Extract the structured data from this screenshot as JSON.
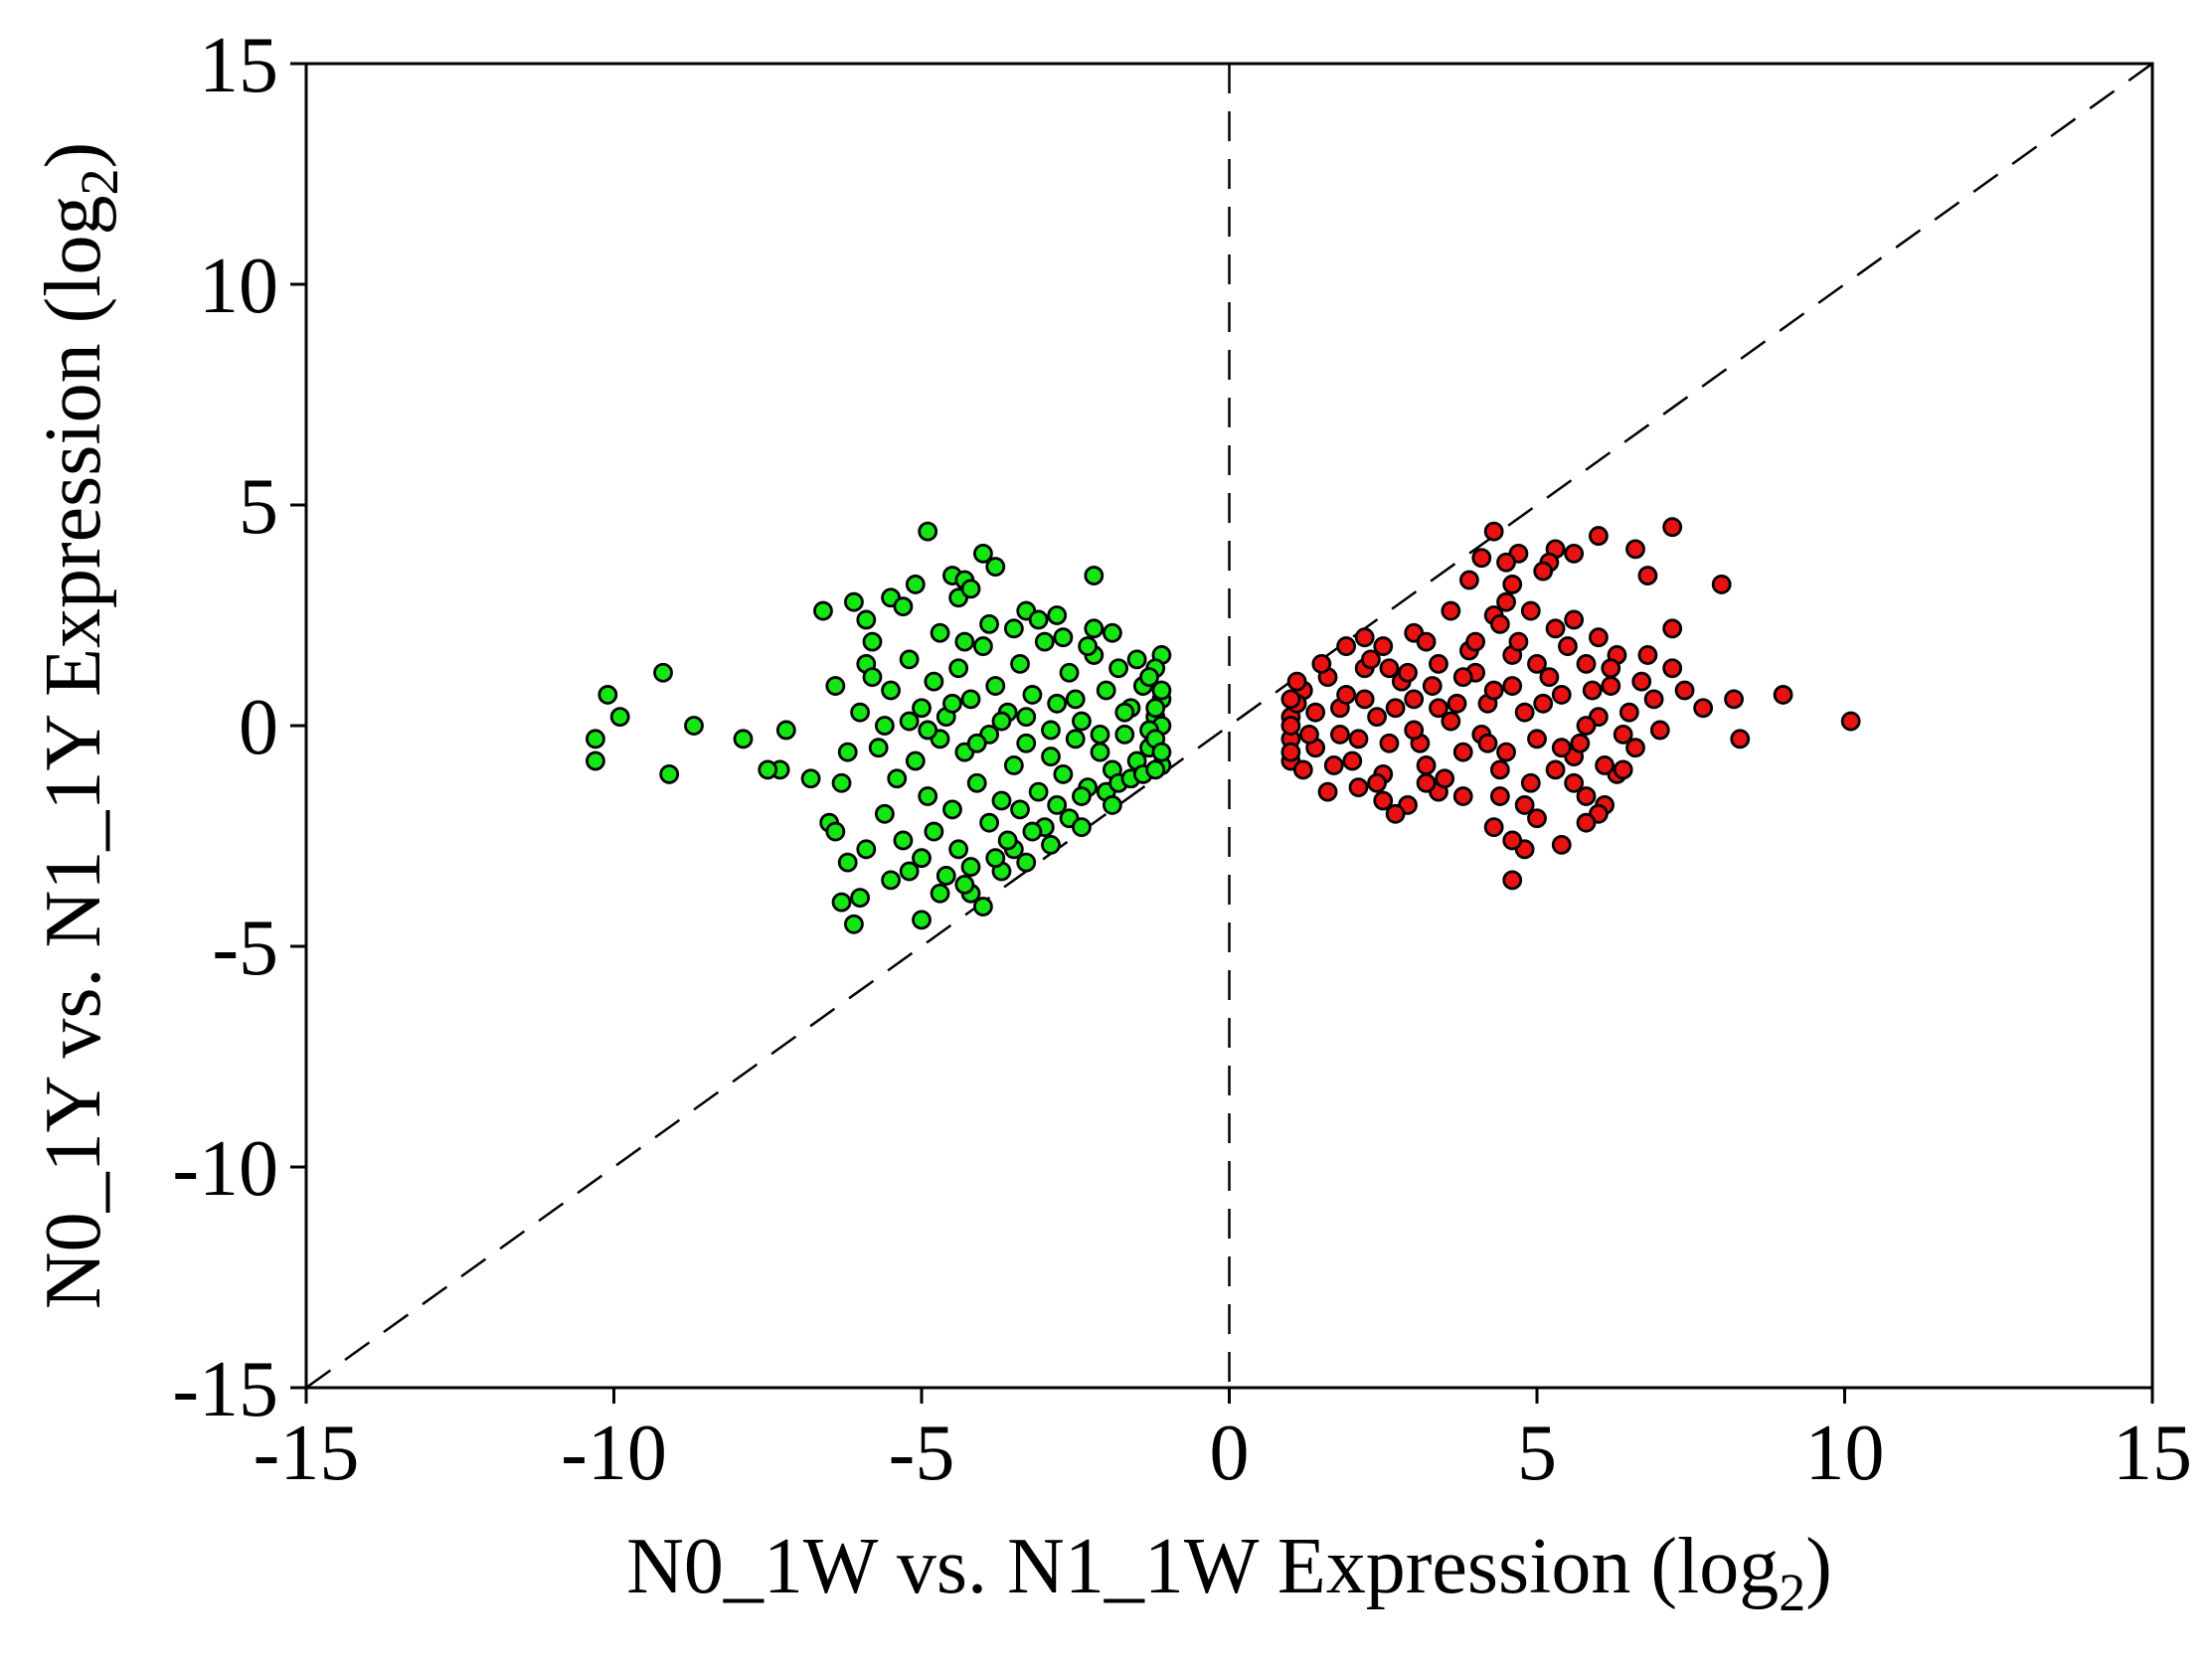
{
  "chart_data": {
    "type": "scatter",
    "title": "",
    "xlabel": {
      "main": "N0_1W vs. N1_1W Expression (log",
      "sub": "2",
      "end": ")"
    },
    "ylabel": {
      "main": "N0_1Y vs. N1_1Y Expression (log",
      "sub": "2",
      "end": ")"
    },
    "xlim": [
      -15,
      15
    ],
    "ylim": [
      -15,
      15
    ],
    "xticks": [
      -15,
      -10,
      -5,
      0,
      5,
      10,
      15
    ],
    "yticks": [
      -15,
      -10,
      -5,
      0,
      5,
      10,
      15
    ],
    "xtick_labels": [
      "-15",
      "-10",
      "-5",
      "0",
      "5",
      "10",
      "15"
    ],
    "ytick_labels": [
      "-15",
      "-10",
      "-5",
      "0",
      "5",
      "10",
      "15"
    ],
    "grid": false,
    "reference_lines": [
      {
        "kind": "vertical",
        "x": 0,
        "style": "dashed"
      },
      {
        "kind": "diagonal",
        "slope": 1,
        "intercept": 0,
        "style": "dashed"
      }
    ],
    "colors": {
      "down": "#14e614",
      "up": "#e81212",
      "edge": "#000000"
    },
    "series": [
      {
        "color": "#14e614",
        "points": [
          [
            -10.3,
            -0.8
          ],
          [
            -10.3,
            -0.3
          ],
          [
            -10.1,
            0.7
          ],
          [
            -9.9,
            0.2
          ],
          [
            -9.2,
            1.2
          ],
          [
            -9.1,
            -1.1
          ],
          [
            -8.7,
            0.0
          ],
          [
            -7.9,
            -0.3
          ],
          [
            -7.2,
            -0.1
          ],
          [
            -7.3,
            -1.0
          ],
          [
            -7.5,
            -1.0
          ],
          [
            -6.8,
            -1.2
          ],
          [
            -6.6,
            2.6
          ],
          [
            -6.5,
            -2.2
          ],
          [
            -6.4,
            -2.4
          ],
          [
            -6.3,
            -4.0
          ],
          [
            -6.2,
            -3.1
          ],
          [
            -6.1,
            -4.5
          ],
          [
            -6.1,
            2.8
          ],
          [
            -6.0,
            -3.9
          ],
          [
            -5.9,
            2.4
          ],
          [
            -5.8,
            1.9
          ],
          [
            -5.9,
            1.4
          ],
          [
            -5.5,
            2.9
          ],
          [
            -5.3,
            2.7
          ],
          [
            -5.1,
            3.2
          ],
          [
            -5.0,
            -4.4
          ],
          [
            -4.9,
            4.4
          ],
          [
            -4.5,
            3.4
          ],
          [
            -4.4,
            2.9
          ],
          [
            -4.3,
            3.3
          ],
          [
            -4.2,
            3.1
          ],
          [
            -4.0,
            3.9
          ],
          [
            -3.8,
            3.6
          ],
          [
            -4.2,
            -3.8
          ],
          [
            -4.0,
            -4.1
          ],
          [
            -3.7,
            -3.3
          ],
          [
            -3.3,
            2.6
          ],
          [
            -2.8,
            2.5
          ],
          [
            -2.2,
            3.4
          ],
          [
            -2.2,
            2.2
          ],
          [
            -1.1,
            1.6
          ],
          [
            -3.0,
            -2.3
          ],
          [
            -3.5,
            -2.8
          ],
          [
            -5.8,
            1.1
          ],
          [
            -5.5,
            0.8
          ],
          [
            -5.2,
            1.5
          ],
          [
            -5.0,
            0.4
          ],
          [
            -4.8,
            1.0
          ],
          [
            -4.6,
            0.2
          ],
          [
            -4.4,
            1.3
          ],
          [
            -4.2,
            0.6
          ],
          [
            -4.0,
            1.8
          ],
          [
            -3.8,
            0.9
          ],
          [
            -3.6,
            0.3
          ],
          [
            -3.4,
            1.4
          ],
          [
            -3.2,
            0.7
          ],
          [
            -3.0,
            1.9
          ],
          [
            -2.8,
            0.5
          ],
          [
            -2.6,
            1.2
          ],
          [
            -2.4,
            0.1
          ],
          [
            -2.2,
            1.6
          ],
          [
            -2.0,
            0.8
          ],
          [
            -1.8,
            1.3
          ],
          [
            -1.6,
            0.4
          ],
          [
            -1.4,
            0.9
          ],
          [
            -1.2,
            0.2
          ],
          [
            -1.1,
            0.6
          ],
          [
            -5.7,
            -0.5
          ],
          [
            -5.4,
            -1.2
          ],
          [
            -5.1,
            -0.8
          ],
          [
            -4.9,
            -1.6
          ],
          [
            -4.7,
            -0.3
          ],
          [
            -4.5,
            -1.9
          ],
          [
            -4.3,
            -0.6
          ],
          [
            -4.1,
            -1.3
          ],
          [
            -3.9,
            -0.2
          ],
          [
            -3.7,
            -1.7
          ],
          [
            -3.5,
            -0.9
          ],
          [
            -3.3,
            -0.4
          ],
          [
            -3.1,
            -1.5
          ],
          [
            -2.9,
            -0.7
          ],
          [
            -2.7,
            -1.1
          ],
          [
            -2.5,
            -0.3
          ],
          [
            -2.3,
            -1.4
          ],
          [
            -2.1,
            -0.6
          ],
          [
            -1.9,
            -1.0
          ],
          [
            -1.7,
            -0.2
          ],
          [
            -1.5,
            -0.8
          ],
          [
            -1.3,
            -0.5
          ],
          [
            -1.1,
            -0.9
          ],
          [
            -1.1,
            0.0
          ],
          [
            -6.0,
            0.3
          ],
          [
            -6.2,
            -0.6
          ],
          [
            -5.6,
            -2.0
          ],
          [
            -5.3,
            -2.6
          ],
          [
            -5.0,
            -3.0
          ],
          [
            -4.8,
            -2.4
          ],
          [
            -4.6,
            -3.4
          ],
          [
            -4.4,
            -2.8
          ],
          [
            -4.2,
            -3.2
          ],
          [
            -3.9,
            -2.2
          ],
          [
            -3.6,
            -2.6
          ],
          [
            -3.4,
            -1.9
          ],
          [
            -3.2,
            -2.4
          ],
          [
            -2.8,
            -1.8
          ],
          [
            -2.6,
            -2.1
          ],
          [
            -2.4,
            -1.6
          ],
          [
            -2.0,
            -1.5
          ],
          [
            -1.8,
            -1.3
          ],
          [
            -1.6,
            -1.2
          ],
          [
            -1.4,
            -1.1
          ],
          [
            -5.6,
            0.0
          ],
          [
            -5.2,
            0.1
          ],
          [
            -4.9,
            -0.1
          ],
          [
            -4.5,
            0.5
          ],
          [
            -4.1,
            -0.4
          ],
          [
            -3.7,
            0.1
          ],
          [
            -3.3,
            0.2
          ],
          [
            -2.9,
            -0.1
          ],
          [
            -2.5,
            0.6
          ],
          [
            -2.1,
            -0.2
          ],
          [
            -1.7,
            0.3
          ],
          [
            -1.3,
            -0.1
          ],
          [
            -4.7,
            2.1
          ],
          [
            -4.3,
            1.9
          ],
          [
            -3.9,
            2.3
          ],
          [
            -3.5,
            2.2
          ],
          [
            -3.1,
            2.4
          ],
          [
            -2.7,
            2.0
          ],
          [
            -2.3,
            1.8
          ],
          [
            -1.9,
            2.1
          ],
          [
            -1.5,
            1.5
          ],
          [
            -1.2,
            1.3
          ],
          [
            -6.4,
            0.9
          ],
          [
            -6.3,
            -1.3
          ],
          [
            -5.9,
            -2.8
          ],
          [
            -5.5,
            -3.5
          ],
          [
            -5.2,
            -3.3
          ],
          [
            -4.7,
            -3.8
          ],
          [
            -4.3,
            -3.6
          ],
          [
            -3.8,
            -3.0
          ],
          [
            -3.3,
            -3.1
          ],
          [
            -2.9,
            -2.7
          ],
          [
            -2.4,
            -2.3
          ],
          [
            -1.9,
            -1.8
          ],
          [
            -1.2,
            -1.0
          ],
          [
            -1.2,
            0.4
          ],
          [
            -1.2,
            -0.3
          ],
          [
            -1.1,
            0.8
          ],
          [
            -1.1,
            -0.6
          ],
          [
            -1.3,
            1.1
          ]
        ]
      },
      {
        "color": "#e81212",
        "points": [
          [
            10.1,
            0.1
          ],
          [
            9.0,
            0.7
          ],
          [
            8.3,
            -0.3
          ],
          [
            8.2,
            0.6
          ],
          [
            8.0,
            3.2
          ],
          [
            7.7,
            0.4
          ],
          [
            7.4,
            0.8
          ],
          [
            7.2,
            4.5
          ],
          [
            7.2,
            2.2
          ],
          [
            7.2,
            1.3
          ],
          [
            6.6,
            4.0
          ],
          [
            6.8,
            3.4
          ],
          [
            6.6,
            -0.5
          ],
          [
            6.3,
            -1.1
          ],
          [
            6.1,
            -1.8
          ],
          [
            6.0,
            -2.0
          ],
          [
            6.0,
            4.3
          ],
          [
            5.6,
            3.9
          ],
          [
            5.3,
            4.0
          ],
          [
            5.2,
            3.7
          ],
          [
            5.1,
            3.5
          ],
          [
            4.7,
            3.9
          ],
          [
            4.6,
            3.2
          ],
          [
            4.5,
            3.7
          ],
          [
            4.5,
            2.8
          ],
          [
            4.3,
            4.4
          ],
          [
            4.3,
            2.5
          ],
          [
            4.1,
            3.8
          ],
          [
            3.9,
            3.3
          ],
          [
            4.8,
            -2.8
          ],
          [
            4.6,
            -2.6
          ],
          [
            4.6,
            -3.5
          ],
          [
            4.3,
            -2.3
          ],
          [
            5.4,
            -2.7
          ],
          [
            5.8,
            -2.2
          ],
          [
            5.6,
            -1.3
          ],
          [
            3.4,
            -1.5
          ],
          [
            2.9,
            -1.8
          ],
          [
            2.7,
            -2.0
          ],
          [
            2.5,
            -1.7
          ],
          [
            3.0,
            2.1
          ],
          [
            2.5,
            1.8
          ],
          [
            2.2,
            2.0
          ],
          [
            2.1,
            -1.4
          ],
          [
            1.6,
            -1.5
          ],
          [
            1.9,
            1.8
          ],
          [
            1.0,
            0.2
          ],
          [
            1.2,
            0.8
          ],
          [
            1.4,
            -0.5
          ],
          [
            1.6,
            1.1
          ],
          [
            1.8,
            0.4
          ],
          [
            2.0,
            -0.8
          ],
          [
            2.2,
            1.3
          ],
          [
            2.4,
            0.2
          ],
          [
            2.6,
            -0.4
          ],
          [
            2.8,
            1.0
          ],
          [
            3.0,
            0.6
          ],
          [
            3.2,
            -0.9
          ],
          [
            3.4,
            1.4
          ],
          [
            3.6,
            0.1
          ],
          [
            3.8,
            -0.6
          ],
          [
            4.0,
            1.2
          ],
          [
            4.2,
            0.5
          ],
          [
            4.4,
            -1.0
          ],
          [
            4.6,
            1.6
          ],
          [
            4.8,
            0.3
          ],
          [
            5.0,
            -0.3
          ],
          [
            5.2,
            1.1
          ],
          [
            5.4,
            0.7
          ],
          [
            5.6,
            -0.7
          ],
          [
            5.8,
            1.4
          ],
          [
            6.0,
            0.2
          ],
          [
            6.2,
            0.9
          ],
          [
            6.4,
            -0.2
          ],
          [
            1.0,
            -0.8
          ],
          [
            1.1,
            0.5
          ],
          [
            1.3,
            -0.2
          ],
          [
            1.5,
            1.4
          ],
          [
            1.7,
            -0.9
          ],
          [
            1.9,
            0.7
          ],
          [
            2.1,
            -0.3
          ],
          [
            2.3,
            1.5
          ],
          [
            2.5,
            -1.1
          ],
          [
            2.7,
            0.4
          ],
          [
            2.9,
            1.2
          ],
          [
            3.1,
            -0.4
          ],
          [
            3.3,
            0.9
          ],
          [
            3.5,
            -1.2
          ],
          [
            3.7,
            0.5
          ],
          [
            3.9,
            1.7
          ],
          [
            4.1,
            -0.2
          ],
          [
            4.3,
            0.8
          ],
          [
            4.5,
            -0.6
          ],
          [
            4.7,
            1.9
          ],
          [
            4.9,
            -1.3
          ],
          [
            5.1,
            0.5
          ],
          [
            5.3,
            -1.0
          ],
          [
            5.5,
            1.8
          ],
          [
            5.7,
            -0.4
          ],
          [
            5.9,
            0.8
          ],
          [
            6.1,
            -0.9
          ],
          [
            6.3,
            1.6
          ],
          [
            6.5,
            0.3
          ],
          [
            6.7,
            1.0
          ],
          [
            6.9,
            0.6
          ],
          [
            7.0,
            -0.1
          ],
          [
            1.0,
            0.6
          ],
          [
            1.0,
            -0.3
          ],
          [
            1.0,
            0.0
          ],
          [
            1.0,
            -0.6
          ],
          [
            1.1,
            1.0
          ],
          [
            1.2,
            -1.0
          ],
          [
            1.4,
            0.3
          ],
          [
            1.8,
            -0.2
          ],
          [
            2.2,
            0.6
          ],
          [
            2.6,
            1.3
          ],
          [
            3.0,
            -0.1
          ],
          [
            3.4,
            0.4
          ],
          [
            3.8,
            1.1
          ],
          [
            4.2,
            -0.4
          ],
          [
            4.6,
            0.9
          ],
          [
            5.0,
            1.4
          ],
          [
            5.4,
            -0.5
          ],
          [
            5.8,
            0.0
          ],
          [
            6.2,
            1.3
          ],
          [
            4.4,
            2.3
          ],
          [
            4.9,
            2.6
          ],
          [
            5.3,
            2.2
          ],
          [
            3.6,
            2.6
          ],
          [
            3.2,
            1.9
          ],
          [
            4.0,
            1.9
          ],
          [
            5.6,
            2.4
          ],
          [
            6.0,
            2.0
          ],
          [
            4.8,
            -1.8
          ],
          [
            4.4,
            -1.6
          ],
          [
            5.0,
            -2.1
          ],
          [
            3.8,
            -1.6
          ],
          [
            3.2,
            -1.3
          ],
          [
            2.4,
            -1.3
          ],
          [
            5.8,
            -1.6
          ],
          [
            6.4,
            -1.0
          ],
          [
            6.8,
            1.6
          ]
        ]
      }
    ]
  }
}
